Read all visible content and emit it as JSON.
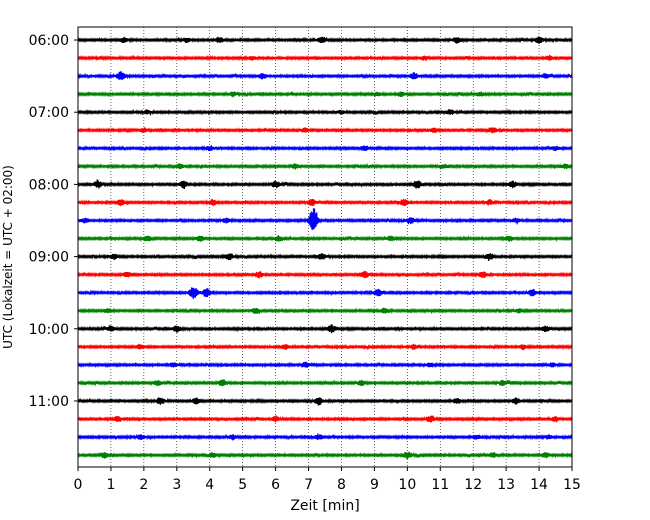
{
  "chart_data": {
    "type": "line",
    "title": "",
    "xlabel": "Zeit  [min]",
    "ylabel": "UTC (Lokalzeit = UTC + 02:00)",
    "xlim": [
      0,
      15
    ],
    "x_ticks": [
      "0",
      "1",
      "2",
      "3",
      "4",
      "5",
      "6",
      "7",
      "8",
      "9",
      "10",
      "11",
      "12",
      "13",
      "14",
      "15"
    ],
    "y_ticks": [
      "06:00",
      "07:00",
      "08:00",
      "09:00",
      "10:00",
      "11:00"
    ],
    "grid_x": true,
    "trace_interval_min": 15,
    "colors": [
      "#000000",
      "#ff0000",
      "#0000ff",
      "#008000"
    ],
    "series": [
      {
        "start": "06:00",
        "color": "#000000",
        "events": [
          [
            1.4,
            0.35
          ],
          [
            3.3,
            0.3
          ],
          [
            4.3,
            0.45
          ],
          [
            7.4,
            0.5
          ],
          [
            11.5,
            0.4
          ],
          [
            14.0,
            0.45
          ]
        ]
      },
      {
        "start": "06:15",
        "color": "#ff0000",
        "events": [
          [
            0.6,
            0.2
          ],
          [
            5.3,
            0.25
          ],
          [
            10.5,
            0.25
          ],
          [
            14.3,
            0.3
          ]
        ]
      },
      {
        "start": "06:30",
        "color": "#0000ff",
        "events": [
          [
            1.3,
            0.6
          ],
          [
            5.6,
            0.45
          ],
          [
            10.2,
            0.5
          ],
          [
            14.2,
            0.3
          ]
        ]
      },
      {
        "start": "06:45",
        "color": "#008000",
        "events": [
          [
            4.7,
            0.3
          ],
          [
            9.1,
            0.3
          ],
          [
            9.8,
            0.35
          ],
          [
            12.2,
            0.3
          ]
        ]
      },
      {
        "start": "07:00",
        "color": "#000000",
        "events": [
          [
            2.1,
            0.25
          ],
          [
            8.0,
            0.25
          ],
          [
            11.3,
            0.35
          ]
        ]
      },
      {
        "start": "07:15",
        "color": "#ff0000",
        "events": [
          [
            2.0,
            0.3
          ],
          [
            6.9,
            0.3
          ],
          [
            10.8,
            0.35
          ],
          [
            12.6,
            0.35
          ]
        ]
      },
      {
        "start": "07:30",
        "color": "#0000ff",
        "events": [
          [
            4.0,
            0.3
          ],
          [
            8.7,
            0.35
          ],
          [
            14.5,
            0.3
          ]
        ]
      },
      {
        "start": "07:45",
        "color": "#008000",
        "events": [
          [
            3.1,
            0.35
          ],
          [
            6.6,
            0.35
          ],
          [
            11.1,
            0.3
          ],
          [
            14.8,
            0.3
          ]
        ]
      },
      {
        "start": "08:00",
        "color": "#000000",
        "events": [
          [
            0.6,
            0.5
          ],
          [
            3.2,
            0.5
          ],
          [
            6.0,
            0.45
          ],
          [
            10.3,
            0.55
          ],
          [
            13.2,
            0.45
          ]
        ]
      },
      {
        "start": "08:15",
        "color": "#ff0000",
        "events": [
          [
            1.3,
            0.45
          ],
          [
            4.1,
            0.4
          ],
          [
            7.1,
            0.5
          ],
          [
            9.9,
            0.45
          ],
          [
            12.5,
            0.35
          ]
        ]
      },
      {
        "start": "08:30",
        "color": "#0000ff",
        "events": [
          [
            0.2,
            0.35
          ],
          [
            4.5,
            0.35
          ],
          [
            7.15,
            2.0
          ],
          [
            10.1,
            0.45
          ],
          [
            13.3,
            0.3
          ]
        ]
      },
      {
        "start": "08:45",
        "color": "#008000",
        "events": [
          [
            2.1,
            0.4
          ],
          [
            3.7,
            0.45
          ],
          [
            6.1,
            0.35
          ],
          [
            9.5,
            0.35
          ],
          [
            13.1,
            0.35
          ]
        ]
      },
      {
        "start": "09:00",
        "color": "#000000",
        "events": [
          [
            1.1,
            0.4
          ],
          [
            4.6,
            0.45
          ],
          [
            7.4,
            0.4
          ],
          [
            12.5,
            0.45
          ]
        ]
      },
      {
        "start": "09:15",
        "color": "#ff0000",
        "events": [
          [
            1.5,
            0.4
          ],
          [
            5.5,
            0.45
          ],
          [
            8.7,
            0.55
          ],
          [
            12.3,
            0.5
          ]
        ]
      },
      {
        "start": "09:30",
        "color": "#0000ff",
        "events": [
          [
            3.5,
            0.9
          ],
          [
            3.9,
            0.6
          ],
          [
            9.1,
            0.5
          ],
          [
            13.8,
            0.45
          ]
        ]
      },
      {
        "start": "09:45",
        "color": "#008000",
        "events": [
          [
            0.9,
            0.35
          ],
          [
            5.4,
            0.35
          ],
          [
            9.3,
            0.35
          ],
          [
            13.4,
            0.3
          ]
        ]
      },
      {
        "start": "10:00",
        "color": "#000000",
        "events": [
          [
            1.0,
            0.35
          ],
          [
            3.0,
            0.45
          ],
          [
            7.7,
            0.55
          ],
          [
            14.2,
            0.45
          ]
        ]
      },
      {
        "start": "10:15",
        "color": "#ff0000",
        "events": [
          [
            1.9,
            0.3
          ],
          [
            6.3,
            0.35
          ],
          [
            10.2,
            0.35
          ],
          [
            13.5,
            0.3
          ]
        ]
      },
      {
        "start": "10:30",
        "color": "#0000ff",
        "events": [
          [
            2.9,
            0.3
          ],
          [
            6.9,
            0.35
          ],
          [
            10.7,
            0.3
          ],
          [
            14.4,
            0.3
          ]
        ]
      },
      {
        "start": "10:45",
        "color": "#008000",
        "events": [
          [
            2.4,
            0.4
          ],
          [
            4.4,
            0.45
          ],
          [
            8.6,
            0.35
          ],
          [
            12.9,
            0.35
          ]
        ]
      },
      {
        "start": "11:00",
        "color": "#000000",
        "events": [
          [
            2.5,
            0.5
          ],
          [
            3.6,
            0.45
          ],
          [
            7.3,
            0.6
          ],
          [
            11.5,
            0.4
          ],
          [
            13.3,
            0.45
          ]
        ]
      },
      {
        "start": "11:15",
        "color": "#ff0000",
        "events": [
          [
            1.2,
            0.35
          ],
          [
            6.0,
            0.35
          ],
          [
            10.7,
            0.45
          ],
          [
            14.5,
            0.35
          ]
        ]
      },
      {
        "start": "11:30",
        "color": "#0000ff",
        "events": [
          [
            1.9,
            0.35
          ],
          [
            4.7,
            0.35
          ],
          [
            7.3,
            0.4
          ],
          [
            12.1,
            0.35
          ],
          [
            14.3,
            0.3
          ]
        ]
      },
      {
        "start": "11:45",
        "color": "#008000",
        "events": [
          [
            0.8,
            0.4
          ],
          [
            4.1,
            0.35
          ],
          [
            10.0,
            0.45
          ],
          [
            12.6,
            0.35
          ],
          [
            14.2,
            0.35
          ]
        ]
      }
    ]
  }
}
